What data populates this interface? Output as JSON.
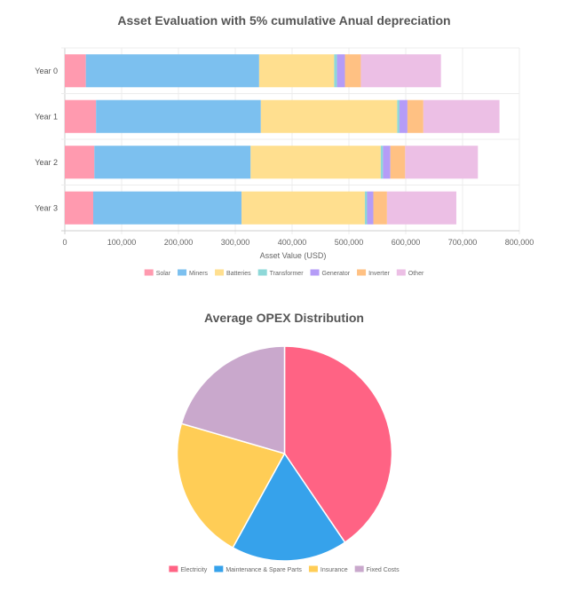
{
  "chart_data": [
    {
      "type": "bar",
      "orientation": "horizontal",
      "stacked": true,
      "title": "Asset Evaluation with 5% cumulative Anual depreciation",
      "xlabel": "Asset Value (USD)",
      "ylabel": "",
      "xlim": [
        0,
        800000
      ],
      "xticks": [
        0,
        100000,
        200000,
        300000,
        400000,
        500000,
        600000,
        700000,
        800000
      ],
      "xtick_labels": [
        "0",
        "100,000",
        "200,000",
        "300,000",
        "400,000",
        "500,000",
        "600,000",
        "700,000",
        "800,000"
      ],
      "categories": [
        "Year 0",
        "Year 1",
        "Year 2",
        "Year 3"
      ],
      "grid": true,
      "legend_position": "bottom",
      "series": [
        {
          "name": "Solar",
          "color": "#ff9aaf",
          "values": [
            37000,
            55000,
            52000,
            50000
          ]
        },
        {
          "name": "Miners",
          "color": "#7cc0ef",
          "values": [
            305000,
            290000,
            275000,
            261000
          ]
        },
        {
          "name": "Batteries",
          "color": "#ffdf8f",
          "values": [
            132000,
            240000,
            229000,
            217000
          ]
        },
        {
          "name": "Transformer",
          "color": "#8ed8d8",
          "values": [
            5000,
            4000,
            4000,
            4000
          ]
        },
        {
          "name": "Generator",
          "color": "#b59cf7",
          "values": [
            14000,
            14000,
            13000,
            11000
          ]
        },
        {
          "name": "Inverter",
          "color": "#ffc183",
          "values": [
            28000,
            28000,
            26000,
            24000
          ]
        },
        {
          "name": "Other",
          "color": "#ecbfe5",
          "values": [
            141000,
            134000,
            128000,
            122000
          ]
        }
      ]
    },
    {
      "type": "pie",
      "title": "Average OPEX Distribution",
      "legend_position": "bottom",
      "categories": [
        "Electricity",
        "Maintenance & Spare Parts",
        "Insurance",
        "Fixed Costs"
      ],
      "values": [
        40.5,
        17.5,
        21.5,
        20.5
      ],
      "colors": [
        "#ff6384",
        "#36a2eb",
        "#ffcd56",
        "#c9a8cc"
      ]
    }
  ]
}
